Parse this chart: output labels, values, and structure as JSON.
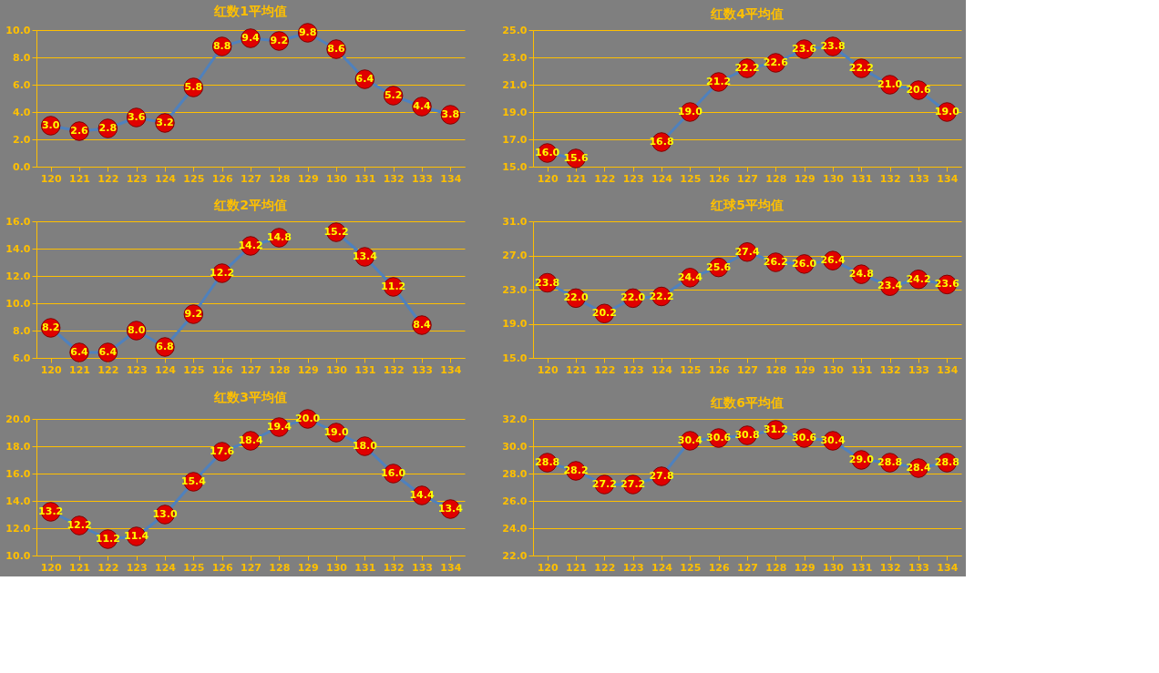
{
  "chart_data": [
    {
      "type": "line",
      "title": "红数1平均值",
      "categories": [
        "120",
        "121",
        "122",
        "123",
        "124",
        "125",
        "126",
        "127",
        "128",
        "129",
        "130",
        "131",
        "132",
        "133",
        "134"
      ],
      "series": [
        {
          "color": "#4f81bd",
          "values": [
            3.0,
            2.6,
            2.8,
            3.6,
            3.2,
            5.8,
            8.8,
            9.4,
            9.2,
            9.8,
            8.6,
            6.4,
            5.2,
            4.4,
            3.8
          ],
          "value_labels": [
            "3.0",
            "2.6",
            "2.8",
            "3.6",
            "3.2",
            "5.8",
            "8.8",
            "9.4",
            "9.2",
            "9.8",
            "8.6",
            "6.4",
            "5.2",
            "4.4",
            "3.8"
          ]
        }
      ],
      "ylim": [
        0,
        10
      ],
      "yticks": [
        {
          "value": 0,
          "label": "0.0"
        },
        {
          "value": 2,
          "label": "2.0"
        },
        {
          "value": 4,
          "label": "4.0"
        },
        {
          "value": 6,
          "label": "6.0"
        },
        {
          "value": 8,
          "label": "8.0"
        },
        {
          "value": 10,
          "label": "10.0"
        }
      ],
      "grid": "y",
      "marker": "circle",
      "line_style": "solid"
    },
    {
      "type": "line",
      "title": "红数4平均值",
      "categories": [
        "120",
        "121",
        "122",
        "123",
        "124",
        "125",
        "126",
        "127",
        "128",
        "129",
        "130",
        "131",
        "132",
        "133",
        "134"
      ],
      "series": [
        {
          "color": "#4f81bd",
          "values": [
            16.0,
            15.6,
            null,
            null,
            16.8,
            19.0,
            21.2,
            22.2,
            22.6,
            23.6,
            23.8,
            22.2,
            21.0,
            20.6,
            19.0
          ],
          "value_labels": [
            "16.0",
            "15.6",
            null,
            null,
            "16.8",
            "19.0",
            "21.2",
            "22.2",
            "22.6",
            "23.6",
            "23.8",
            "22.2",
            "21.0",
            "20.6",
            "19.0"
          ]
        }
      ],
      "ylim": [
        15,
        25
      ],
      "yticks": [
        {
          "value": 15,
          "label": "15.0"
        },
        {
          "value": 17,
          "label": "17.0"
        },
        {
          "value": 19,
          "label": "19.0"
        },
        {
          "value": 21,
          "label": "21.0"
        },
        {
          "value": 23,
          "label": "23.0"
        },
        {
          "value": 25,
          "label": "25.0"
        }
      ],
      "grid": "y",
      "marker": "circle",
      "line_style": "solid"
    },
    {
      "type": "line",
      "title": "红数2平均值",
      "categories": [
        "120",
        "121",
        "122",
        "123",
        "124",
        "125",
        "126",
        "127",
        "128",
        "129",
        "130",
        "131",
        "132",
        "133",
        "134"
      ],
      "series": [
        {
          "color": "#4f81bd",
          "values": [
            8.2,
            6.4,
            6.4,
            8.0,
            6.8,
            9.2,
            12.2,
            14.2,
            14.8,
            null,
            15.2,
            13.4,
            11.2,
            8.4,
            null
          ],
          "value_labels": [
            "8.2",
            "6.4",
            "6.4",
            "8.0",
            "6.8",
            "9.2",
            "12.2",
            "14.2",
            "14.8",
            null,
            "15.2",
            "13.4",
            "11.2",
            "8.4",
            null
          ]
        }
      ],
      "ylim": [
        6,
        16
      ],
      "yticks": [
        {
          "value": 6,
          "label": "6.0"
        },
        {
          "value": 8,
          "label": "8.0"
        },
        {
          "value": 10,
          "label": "10.0"
        },
        {
          "value": 12,
          "label": "12.0"
        },
        {
          "value": 14,
          "label": "14.0"
        },
        {
          "value": 16,
          "label": "16.0"
        }
      ],
      "grid": "y",
      "marker": "circle",
      "line_style": "solid"
    },
    {
      "type": "line",
      "title": "红球5平均值",
      "categories": [
        "120",
        "121",
        "122",
        "123",
        "124",
        "125",
        "126",
        "127",
        "128",
        "129",
        "130",
        "131",
        "132",
        "133",
        "134"
      ],
      "series": [
        {
          "color": "#4f81bd",
          "values": [
            23.8,
            22.0,
            20.2,
            22.0,
            22.2,
            24.4,
            25.6,
            27.4,
            26.2,
            26.0,
            26.4,
            24.8,
            23.4,
            24.2,
            23.6
          ],
          "value_labels": [
            "23.8",
            "22.0",
            "20.2",
            "22.0",
            "22.2",
            "24.4",
            "25.6",
            "27.4",
            "26.2",
            "26.0",
            "26.4",
            "24.8",
            "23.4",
            "24.2",
            "23.6"
          ]
        }
      ],
      "ylim": [
        15,
        31
      ],
      "yticks": [
        {
          "value": 15,
          "label": "15.0"
        },
        {
          "value": 19,
          "label": "19.0"
        },
        {
          "value": 23,
          "label": "23.0"
        },
        {
          "value": 27,
          "label": "27.0"
        },
        {
          "value": 31,
          "label": "31.0"
        }
      ],
      "grid": "y",
      "marker": "circle",
      "line_style": "solid"
    },
    {
      "type": "line",
      "title": "红数3平均值",
      "categories": [
        "120",
        "121",
        "122",
        "123",
        "124",
        "125",
        "126",
        "127",
        "128",
        "129",
        "130",
        "131",
        "132",
        "133",
        "134"
      ],
      "series": [
        {
          "color": "#4f81bd",
          "values": [
            13.2,
            12.2,
            11.2,
            11.4,
            13.0,
            15.4,
            17.6,
            18.4,
            19.4,
            20.0,
            19.0,
            18.0,
            16.0,
            14.4,
            13.4
          ],
          "value_labels": [
            "13.2",
            "12.2",
            "11.2",
            "11.4",
            "13.0",
            "15.4",
            "17.6",
            "18.4",
            "19.4",
            "20.0",
            "19.0",
            "18.0",
            "16.0",
            "14.4",
            "13.4"
          ]
        }
      ],
      "ylim": [
        10,
        20
      ],
      "yticks": [
        {
          "value": 10,
          "label": "10.0"
        },
        {
          "value": 12,
          "label": "12.0"
        },
        {
          "value": 14,
          "label": "14.0"
        },
        {
          "value": 16,
          "label": "16.0"
        },
        {
          "value": 18,
          "label": "18.0"
        },
        {
          "value": 20,
          "label": "20.0"
        }
      ],
      "grid": "y",
      "marker": "circle",
      "line_style": "solid"
    },
    {
      "type": "line",
      "title": "红数6平均值",
      "categories": [
        "120",
        "121",
        "122",
        "123",
        "124",
        "125",
        "126",
        "127",
        "128",
        "129",
        "130",
        "131",
        "132",
        "133",
        "134"
      ],
      "series": [
        {
          "color": "#4f81bd",
          "values": [
            28.8,
            28.2,
            27.2,
            27.2,
            27.8,
            30.4,
            30.6,
            30.8,
            31.2,
            30.6,
            30.4,
            29.0,
            28.8,
            28.4,
            28.8
          ],
          "value_labels": [
            "28.8",
            "28.2",
            "27.2",
            "27.2",
            "27.8",
            "30.4",
            "30.6",
            "30.8",
            "31.2",
            "30.6",
            "30.4",
            "29.0",
            "28.8",
            "28.4",
            "28.8"
          ]
        }
      ],
      "ylim": [
        22,
        32
      ],
      "yticks": [
        {
          "value": 22,
          "label": "22.0"
        },
        {
          "value": 24,
          "label": "24.0"
        },
        {
          "value": 26,
          "label": "26.0"
        },
        {
          "value": 28,
          "label": "28.0"
        },
        {
          "value": 30,
          "label": "30.0"
        },
        {
          "value": 32,
          "label": "32.0"
        }
      ],
      "grid": "y",
      "marker": "circle",
      "line_style": "solid"
    }
  ]
}
